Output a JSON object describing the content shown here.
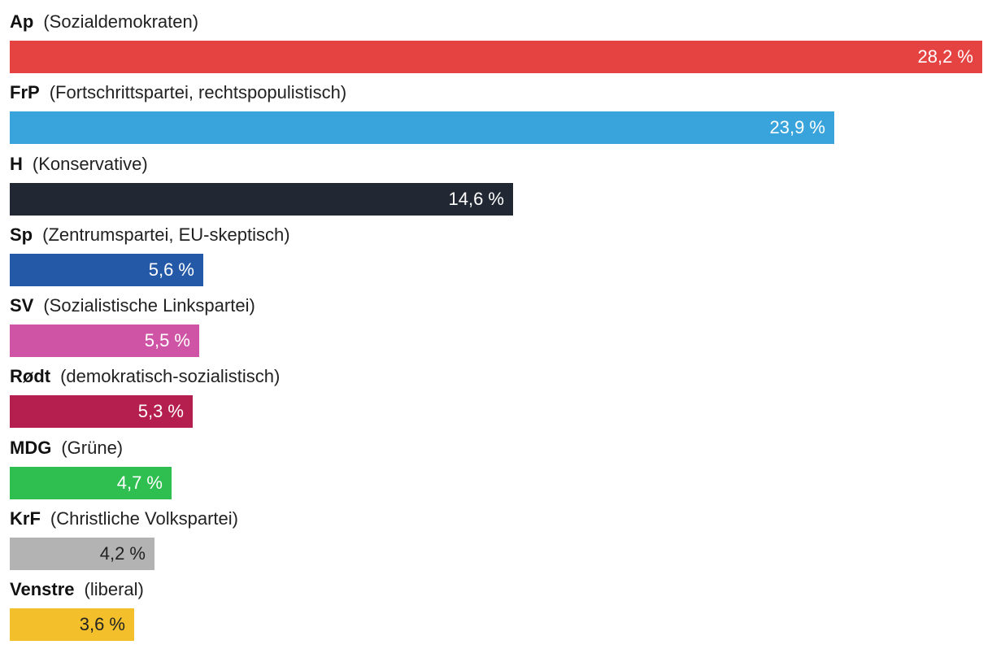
{
  "chart_data": {
    "type": "bar",
    "orientation": "horizontal",
    "categories": [
      "Ap",
      "FrP",
      "H",
      "Sp",
      "SV",
      "Rødt",
      "MDG",
      "KrF",
      "Venstre"
    ],
    "descriptions": [
      "(Sozialdemokraten)",
      "(Fortschrittspartei, rechtspopulistisch)",
      "(Konservative)",
      "(Zentrumspartei, EU-skeptisch)",
      "(Sozialistische Linkspartei)",
      "(demokratisch-sozialistisch)",
      "(Grüne)",
      "(Christliche Volkspartei)",
      "(liberal)"
    ],
    "values": [
      28.2,
      23.9,
      14.6,
      5.6,
      5.5,
      5.3,
      4.7,
      4.2,
      3.6
    ],
    "value_labels": [
      "28,2 %",
      "23,9 %",
      "14,6 %",
      "5,6 %",
      "5,5 %",
      "5,3 %",
      "4,7 %",
      "4,2 %",
      "3,6 %"
    ],
    "colors": [
      "#e54242",
      "#39a4db",
      "#212833",
      "#2459a8",
      "#cf54a5",
      "#b41f50",
      "#2fbf51",
      "#b3b3b3",
      "#f3c02c"
    ],
    "value_label_colors": [
      "#ffffff",
      "#ffffff",
      "#ffffff",
      "#ffffff",
      "#ffffff",
      "#ffffff",
      "#ffffff",
      "#222222",
      "#222222"
    ],
    "title": "",
    "xlabel": "",
    "ylabel": "",
    "xlim": [
      0,
      28.2
    ],
    "grid": false,
    "legend": "none"
  }
}
